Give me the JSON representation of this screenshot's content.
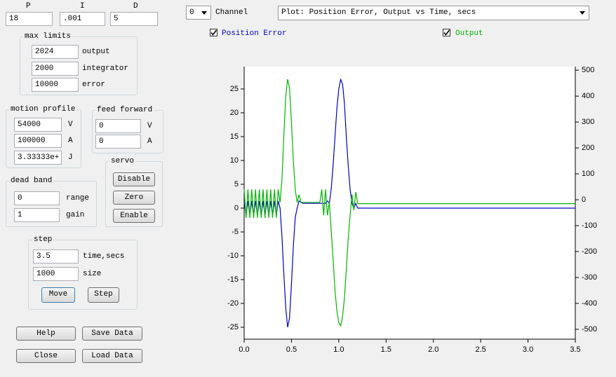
{
  "ui": {
    "pid_labels": [
      "P",
      "I",
      "D"
    ],
    "pid_values": [
      "18",
      ".001",
      "5"
    ],
    "max_limits": {
      "title": "max limits",
      "values": [
        "2024",
        "2000",
        "10000"
      ],
      "labels": [
        "output",
        "integrator",
        "error"
      ]
    },
    "motion_profile": {
      "title": "motion profile",
      "values": [
        "54000",
        "100000",
        "3.33333e+"
      ],
      "labels": [
        "V",
        "A",
        "J"
      ]
    },
    "feed_forward": {
      "title": "feed forward",
      "values": [
        "0",
        "0"
      ],
      "labels": [
        "V",
        "A"
      ]
    },
    "servo": {
      "title": "servo",
      "buttons": [
        "Disable",
        "Zero",
        "Enable"
      ]
    },
    "dead_band": {
      "title": "dead band",
      "values": [
        "0",
        "1"
      ],
      "labels": [
        "range",
        "gain"
      ]
    },
    "step": {
      "title": "step",
      "values": [
        "3.5",
        "1000"
      ],
      "labels": [
        "time,secs",
        "size"
      ],
      "buttons": [
        "Move",
        "Step"
      ]
    },
    "buttons": [
      "Help",
      "Save Data",
      "Close",
      "Load Data"
    ],
    "channel": {
      "value": "0",
      "label": "Channel"
    },
    "plot_select": "Plot: Position Error, Output vs Time, secs"
  },
  "chart_data": {
    "type": "line",
    "x": [
      0,
      0.02,
      0.04,
      0.06,
      0.08,
      0.1,
      0.12,
      0.14,
      0.16,
      0.18,
      0.2,
      0.22,
      0.24,
      0.26,
      0.28,
      0.3,
      0.32,
      0.34,
      0.36,
      0.38,
      0.4,
      0.42,
      0.44,
      0.46,
      0.48,
      0.5,
      0.52,
      0.54,
      0.56,
      0.58,
      0.6,
      0.62,
      0.64,
      0.66,
      0.68,
      0.7,
      0.72,
      0.74,
      0.76,
      0.78,
      0.8,
      0.82,
      0.84,
      0.86,
      0.88,
      0.9,
      0.92,
      0.94,
      0.96,
      0.98,
      1,
      1.02,
      1.04,
      1.06,
      1.08,
      1.1,
      1.12,
      1.14,
      1.16,
      1.18,
      1.2,
      1.22,
      1.24,
      3.5
    ],
    "series": [
      {
        "name": "Position Error",
        "color": "#0000c8",
        "values": [
          1.5,
          -1.5,
          1.5,
          -1.5,
          1.5,
          -1.5,
          1.5,
          -1.5,
          1.5,
          -1.5,
          1.5,
          -1.5,
          1.5,
          -1.5,
          1.5,
          -1.5,
          1.5,
          -1.5,
          1.5,
          0,
          -6,
          -14,
          -21,
          -25,
          -23,
          -16,
          -8,
          -2,
          0,
          1.5,
          1.2,
          1,
          1,
          1,
          1,
          1,
          1,
          1,
          1,
          1,
          1,
          1,
          1,
          1,
          1.5,
          1,
          4,
          9,
          15,
          21,
          25,
          27,
          26,
          22,
          15,
          9,
          4,
          1,
          0,
          1,
          0,
          0,
          0,
          0
        ]
      },
      {
        "name": "Output",
        "color": "#00b400",
        "axis": "y2",
        "values": [
          40,
          -70,
          40,
          -70,
          40,
          -70,
          40,
          -70,
          40,
          -70,
          40,
          -70,
          40,
          -70,
          40,
          -70,
          40,
          -70,
          40,
          -10,
          80,
          250,
          400,
          465,
          430,
          300,
          150,
          40,
          -10,
          20,
          -10,
          -10,
          -10,
          -10,
          -10,
          -10,
          -10,
          -10,
          -10,
          -10,
          -10,
          40,
          -60,
          40,
          -60,
          -10,
          -120,
          -230,
          -350,
          -430,
          -475,
          -486,
          -450,
          -380,
          -270,
          -150,
          -60,
          20,
          -40,
          30,
          -15,
          -15,
          -15,
          -15
        ]
      }
    ],
    "xlim": [
      0,
      3.5
    ],
    "xticks": [
      {
        "value": 0,
        "label": "0.0"
      },
      0.5,
      {
        "value": 1,
        "label": "1.0"
      },
      1.5,
      {
        "value": 2,
        "label": "2.0"
      },
      2.5,
      {
        "value": 3,
        "label": "3.0"
      },
      3.5
    ],
    "ylim": [
      -27.5,
      29.7
    ],
    "yticks": [
      -25,
      -20,
      -15,
      -10,
      -5,
      0,
      5,
      10,
      15,
      20,
      25
    ],
    "y2lim": [
      -538,
      514
    ],
    "y2ticks": [
      -500,
      -400,
      -300,
      -200,
      -100,
      0,
      100,
      200,
      300,
      400,
      500
    ]
  }
}
